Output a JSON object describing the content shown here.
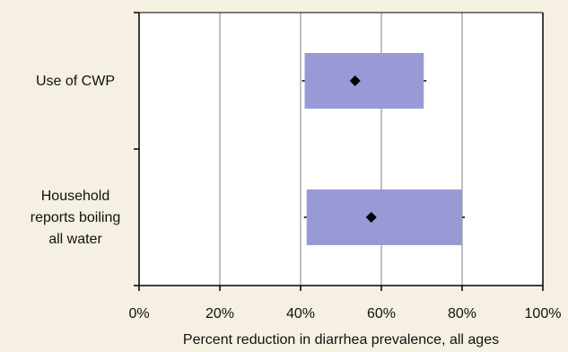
{
  "chart_data": {
    "type": "box",
    "title": "",
    "xlabel": "Percent reduction in diarrhea prevalence, all ages",
    "ylabel": "",
    "xlim": [
      0,
      100
    ],
    "x_ticks": [
      "0%",
      "20%",
      "40%",
      "60%",
      "80%",
      "100%"
    ],
    "x_tick_values": [
      0,
      20,
      40,
      60,
      80,
      100
    ],
    "grid": "vertical",
    "categories": [
      {
        "label_lines": [
          "Use of CWP"
        ],
        "ci_low": 41,
        "ci_high": 70.5,
        "point": 53.5
      },
      {
        "label_lines": [
          "Household",
          "reports boiling",
          "all water"
        ],
        "ci_low": 41.5,
        "ci_high": 80,
        "point": 57.5
      }
    ],
    "colors": {
      "background": "#f5f0e1",
      "plot_area": "#ffffff",
      "box_fill": "#9999d6",
      "marker": "#000000",
      "grid": "#c0c0c0",
      "axis": "#000000"
    }
  }
}
